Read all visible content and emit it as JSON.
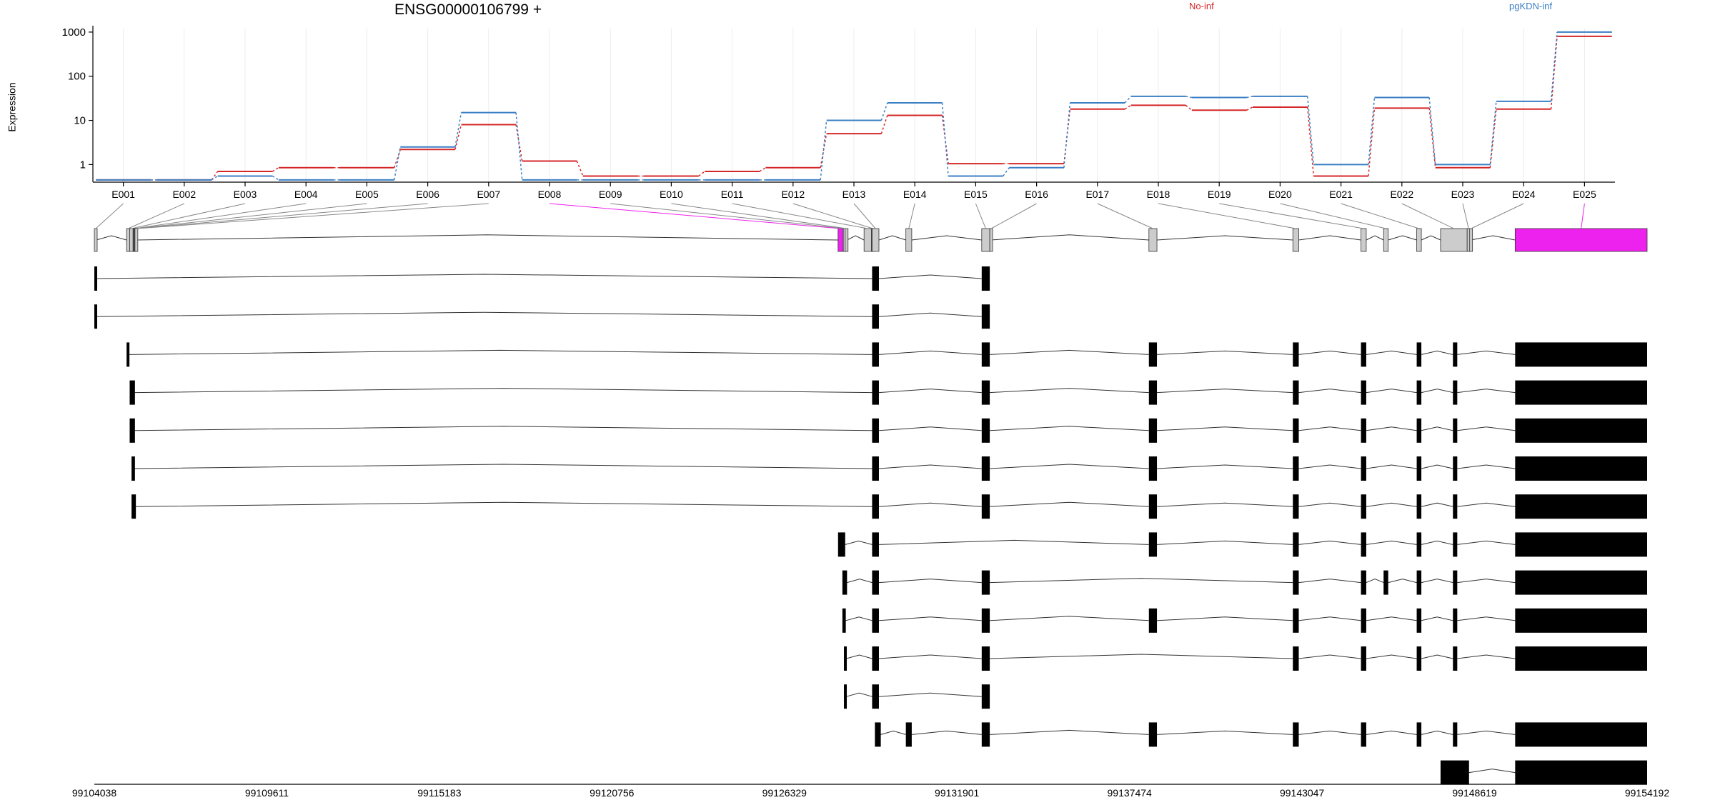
{
  "title": "ENSG00000106799 +",
  "ylabel": "Expression",
  "colors": {
    "noinf": "#d62728",
    "pgkdn": "#3b7fc4",
    "highlight": "#ee22ee",
    "gray_exon": "#cccccc"
  },
  "chart_data": {
    "type": "line",
    "title": "ENSG00000106799 +",
    "ylabel": "Expression",
    "yscale": "log",
    "ylim": [
      0.4,
      1200
    ],
    "yticks": [
      "1",
      "10",
      "100",
      "1000"
    ],
    "grid": true,
    "legend_placement": "top-right",
    "categories": [
      "E001",
      "E002",
      "E003",
      "E004",
      "E005",
      "E006",
      "E007",
      "E008",
      "E009",
      "E010",
      "E011",
      "E012",
      "E013",
      "E014",
      "E015",
      "E016",
      "E017",
      "E018",
      "E019",
      "E020",
      "E021",
      "E022",
      "E023",
      "E024",
      "E025"
    ],
    "series": [
      {
        "name": "No-inf",
        "color": "#d62728",
        "values": [
          0.45,
          0.45,
          0.7,
          0.85,
          0.85,
          2.2,
          8,
          1.2,
          0.55,
          0.55,
          0.7,
          0.85,
          5,
          13,
          1.05,
          1.05,
          18,
          22,
          17,
          20,
          0.55,
          19,
          0.85,
          18,
          800
        ]
      },
      {
        "name": "pgKDN-inf",
        "color": "#3b7fc4",
        "values": [
          0.45,
          0.45,
          0.55,
          0.45,
          0.45,
          2.5,
          15,
          0.45,
          0.45,
          0.45,
          0.45,
          0.45,
          10,
          25,
          0.55,
          0.85,
          25,
          35,
          33,
          35,
          1,
          33,
          1,
          27,
          1000
        ]
      }
    ],
    "gene_model": {
      "genomic_ticks": [
        "99104038",
        "99109611",
        "99115183",
        "99120756",
        "99126329",
        "99131901",
        "99137474",
        "99143047",
        "99148619",
        "99154192"
      ],
      "genomic_range": [
        99104038,
        99154192
      ],
      "exon_bins": [
        {
          "id": "E001",
          "start": 99104038,
          "end": 99104100,
          "highlight": false
        },
        {
          "id": "E002",
          "start": 99105080,
          "end": 99105180,
          "highlight": false
        },
        {
          "id": "E003",
          "start": 99105180,
          "end": 99105290,
          "highlight": false
        },
        {
          "id": "E004",
          "start": 99105290,
          "end": 99105310,
          "highlight": false
        },
        {
          "id": "E005",
          "start": 99105310,
          "end": 99105330,
          "highlight": false
        },
        {
          "id": "E006",
          "start": 99105330,
          "end": 99105350,
          "highlight": false
        },
        {
          "id": "E007",
          "start": 99105350,
          "end": 99105380,
          "highlight": false
        },
        {
          "id": "E008",
          "start": 99128060,
          "end": 99128230,
          "highlight": true
        },
        {
          "id": "E009",
          "start": 99128230,
          "end": 99128290,
          "highlight": false
        },
        {
          "id": "E010",
          "start": 99128290,
          "end": 99128350,
          "highlight": false
        },
        {
          "id": "E011",
          "start": 99128900,
          "end": 99129140,
          "highlight": false
        },
        {
          "id": "E012",
          "start": 99129140,
          "end": 99129160,
          "highlight": false
        },
        {
          "id": "E013",
          "start": 99129160,
          "end": 99129380,
          "highlight": false
        },
        {
          "id": "E014",
          "start": 99130250,
          "end": 99130440,
          "highlight": false
        },
        {
          "id": "E015",
          "start": 99132700,
          "end": 99132960,
          "highlight": false
        },
        {
          "id": "E016",
          "start": 99132960,
          "end": 99132980,
          "highlight": false
        },
        {
          "id": "E017",
          "start": 99138100,
          "end": 99138360,
          "highlight": false
        },
        {
          "id": "E018",
          "start": 99142750,
          "end": 99142940,
          "highlight": false
        },
        {
          "id": "E019",
          "start": 99144950,
          "end": 99145120,
          "highlight": false
        },
        {
          "id": "E020",
          "start": 99145680,
          "end": 99145830,
          "highlight": false
        },
        {
          "id": "E021",
          "start": 99146750,
          "end": 99146900,
          "highlight": false
        },
        {
          "id": "E022",
          "start": 99147520,
          "end": 99148380,
          "highlight": false
        },
        {
          "id": "E023",
          "start": 99148380,
          "end": 99148460,
          "highlight": false
        },
        {
          "id": "E024",
          "start": 99148460,
          "end": 99148500,
          "highlight": false
        },
        {
          "id": "E025",
          "start": 99149930,
          "end": 99154192,
          "highlight": true
        }
      ],
      "transcripts": [
        {
          "exons": [
            [
              99104038,
              99104100
            ],
            [
              99129160,
              99129380
            ],
            [
              99132700,
              99132960
            ]
          ]
        },
        {
          "exons": [
            [
              99104038,
              99104070
            ],
            [
              99129160,
              99129380
            ],
            [
              99132700,
              99132960
            ]
          ]
        },
        {
          "exons": [
            [
              99105080,
              99105160
            ],
            [
              99129160,
              99129380
            ],
            [
              99132700,
              99132960
            ],
            [
              99138100,
              99138360
            ],
            [
              99142750,
              99142940
            ],
            [
              99144950,
              99145120
            ],
            [
              99146750,
              99146900
            ],
            [
              99147920,
              99148060
            ],
            [
              99149930,
              99154192
            ]
          ]
        },
        {
          "exons": [
            [
              99105180,
              99105350
            ],
            [
              99129160,
              99129380
            ],
            [
              99132700,
              99132960
            ],
            [
              99138100,
              99138360
            ],
            [
              99142750,
              99142940
            ],
            [
              99144950,
              99145120
            ],
            [
              99146750,
              99146900
            ],
            [
              99147920,
              99148060
            ],
            [
              99149930,
              99154192
            ]
          ]
        },
        {
          "exons": [
            [
              99105180,
              99105350
            ],
            [
              99129160,
              99129380
            ],
            [
              99132700,
              99132960
            ],
            [
              99138100,
              99138360
            ],
            [
              99142750,
              99142940
            ],
            [
              99144950,
              99145120
            ],
            [
              99146750,
              99146900
            ],
            [
              99147920,
              99148060
            ],
            [
              99149930,
              99154192
            ]
          ]
        },
        {
          "exons": [
            [
              99105240,
              99105350
            ],
            [
              99129160,
              99129380
            ],
            [
              99132700,
              99132960
            ],
            [
              99138100,
              99138360
            ],
            [
              99142750,
              99142940
            ],
            [
              99144950,
              99145120
            ],
            [
              99146750,
              99146900
            ],
            [
              99147920,
              99148060
            ],
            [
              99149930,
              99154192
            ]
          ]
        },
        {
          "exons": [
            [
              99105240,
              99105380
            ],
            [
              99129160,
              99129380
            ],
            [
              99132700,
              99132960
            ],
            [
              99138100,
              99138360
            ],
            [
              99142750,
              99142940
            ],
            [
              99144950,
              99145120
            ],
            [
              99146750,
              99146900
            ],
            [
              99147920,
              99148060
            ],
            [
              99149930,
              99154192
            ]
          ]
        },
        {
          "exons": [
            [
              99128060,
              99128290
            ],
            [
              99129160,
              99129380
            ],
            [
              99138100,
              99138360
            ],
            [
              99142750,
              99142940
            ],
            [
              99144950,
              99145120
            ],
            [
              99146750,
              99146900
            ],
            [
              99147920,
              99148060
            ],
            [
              99149930,
              99154192
            ]
          ]
        },
        {
          "exons": [
            [
              99128200,
              99128350
            ],
            [
              99129160,
              99129380
            ],
            [
              99132700,
              99132960
            ],
            [
              99142750,
              99142940
            ],
            [
              99144950,
              99145120
            ],
            [
              99145680,
              99145830
            ],
            [
              99146750,
              99146900
            ],
            [
              99147920,
              99148060
            ],
            [
              99149930,
              99154192
            ]
          ]
        },
        {
          "exons": [
            [
              99128200,
              99128310
            ],
            [
              99129160,
              99129380
            ],
            [
              99132700,
              99132960
            ],
            [
              99138100,
              99138360
            ],
            [
              99142750,
              99142940
            ],
            [
              99144950,
              99145120
            ],
            [
              99146750,
              99146900
            ],
            [
              99147920,
              99148060
            ],
            [
              99149930,
              99154192
            ]
          ]
        },
        {
          "exons": [
            [
              99128250,
              99128330
            ],
            [
              99129160,
              99129380
            ],
            [
              99132700,
              99132960
            ],
            [
              99142750,
              99142940
            ],
            [
              99144950,
              99145120
            ],
            [
              99146750,
              99146900
            ],
            [
              99147920,
              99148060
            ],
            [
              99149930,
              99154192
            ]
          ]
        },
        {
          "exons": [
            [
              99128250,
              99128330
            ],
            [
              99129160,
              99129380
            ],
            [
              99132700,
              99132960
            ]
          ]
        },
        {
          "exons": [
            [
              99129250,
              99129440
            ],
            [
              99130250,
              99130440
            ],
            [
              99132700,
              99132960
            ],
            [
              99138100,
              99138360
            ],
            [
              99142750,
              99142940
            ],
            [
              99144950,
              99145120
            ],
            [
              99146750,
              99146900
            ],
            [
              99147920,
              99148060
            ],
            [
              99149930,
              99154192
            ]
          ]
        },
        {
          "exons": [
            [
              99147520,
              99148440
            ],
            [
              99149930,
              99154192
            ]
          ]
        }
      ]
    }
  }
}
